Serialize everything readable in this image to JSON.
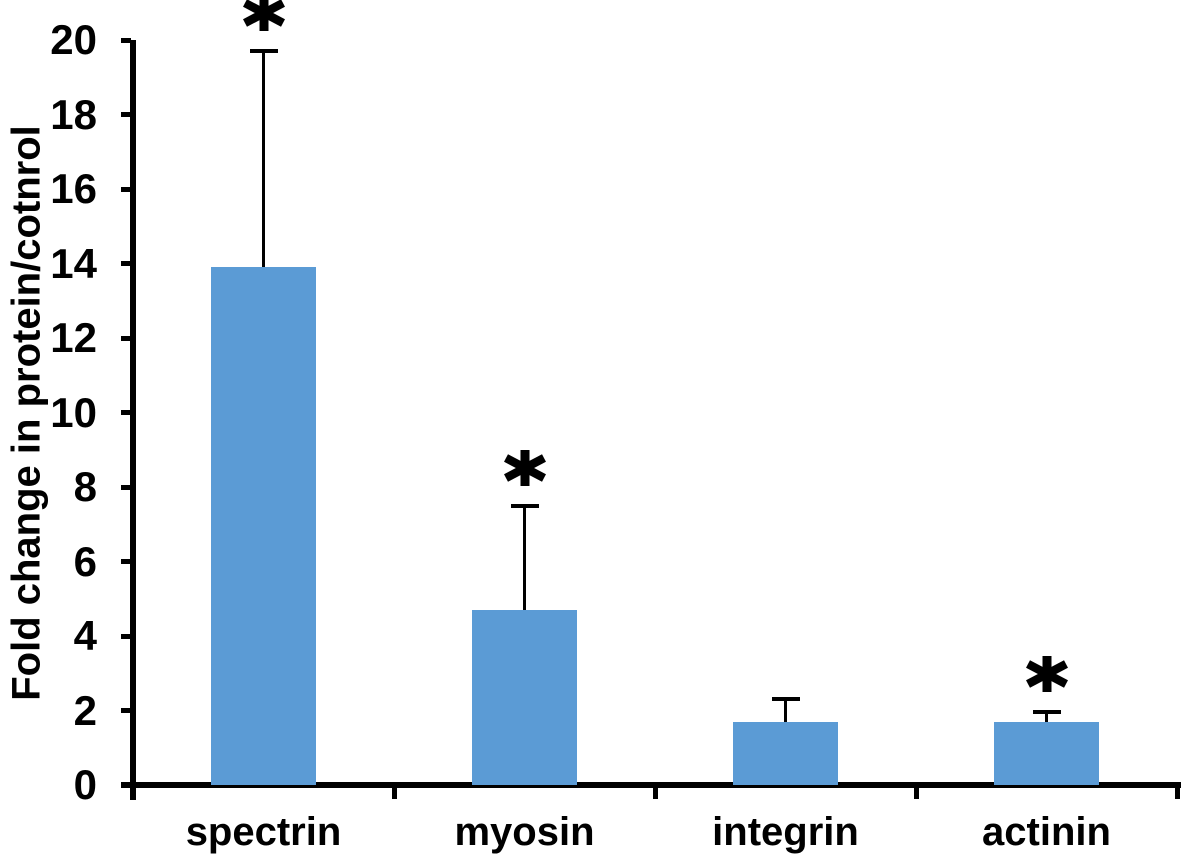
{
  "chart_data": {
    "type": "bar",
    "title": "",
    "xlabel": "",
    "ylabel": "Fold change in protein/cotnrol",
    "categories": [
      "spectrin",
      "myosin",
      "integrin",
      "actinin"
    ],
    "values": [
      13.9,
      4.7,
      1.7,
      1.7
    ],
    "error_bar_tops": [
      19.7,
      7.5,
      2.3,
      1.95
    ],
    "significance": [
      true,
      true,
      false,
      true
    ],
    "significance_marker": "*",
    "ylim": [
      0,
      20
    ],
    "yticks": [
      0,
      2,
      4,
      6,
      8,
      10,
      12,
      14,
      16,
      18,
      20
    ],
    "grid": false,
    "legend": false,
    "bar_color": "#5B9BD5",
    "axis_color": "#000000",
    "error_bar_color": "#000000",
    "text_color": "#000000",
    "background_color": "#ffffff"
  }
}
